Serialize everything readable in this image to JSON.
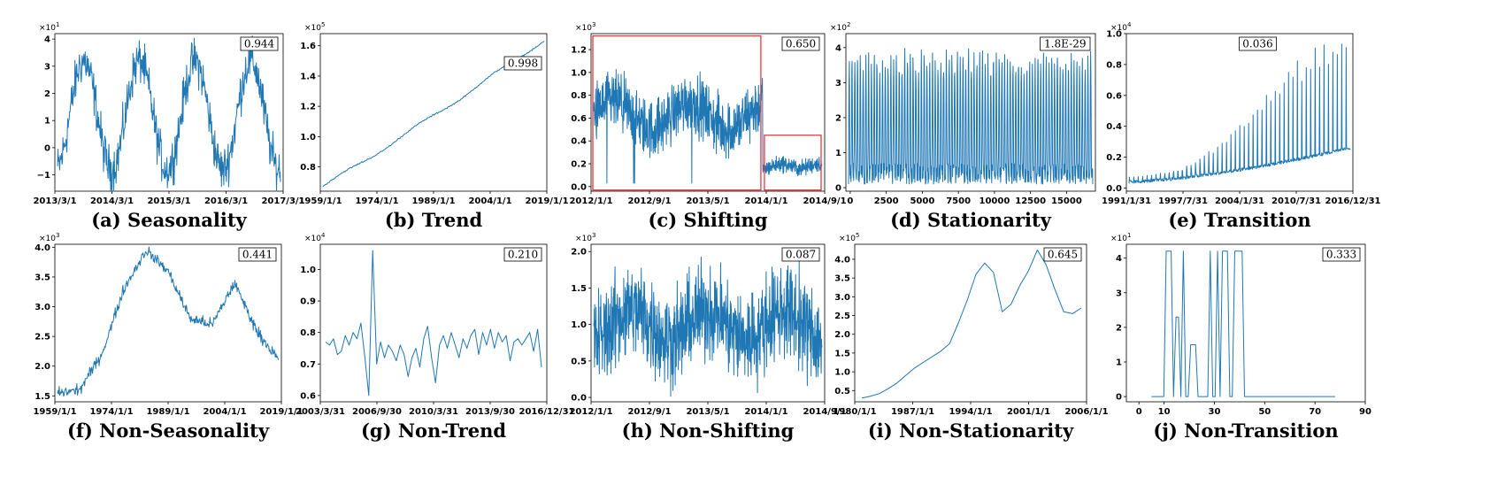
{
  "colors": {
    "series": "#1f77b4",
    "axis": "#000000",
    "highlight": "#e8383d"
  },
  "chart_data": [
    {
      "id": "a",
      "type": "line",
      "caption": "(a) Seasonality",
      "badge": "0.944",
      "exponent": "1",
      "xticks": [
        "2013/3/1",
        "2014/3/1",
        "2015/3/1",
        "2016/3/1",
        "2017/3/1"
      ],
      "yticks": [
        "−1",
        "0",
        "1",
        "2",
        "3",
        "4"
      ],
      "ylim": [
        -1.6,
        4.2
      ],
      "pattern": {
        "kind": "seasonal",
        "n": 500,
        "periods": 4,
        "base": 1.2,
        "amp": 2.0,
        "noise": 0.7,
        "phase": 0.2
      }
    },
    {
      "id": "b",
      "type": "line",
      "caption": "(b) Trend",
      "badge": "0.998",
      "exponent": "5",
      "xticks": [
        "1959/1/1",
        "1974/1/1",
        "1989/1/1",
        "2004/1/1",
        "2019/1/1"
      ],
      "yticks": [
        "0.8",
        "1.0",
        "1.2",
        "1.4",
        "1.6"
      ],
      "ylim": [
        0.64,
        1.68
      ],
      "pattern": {
        "kind": "trend",
        "n": 240,
        "start": 0.67,
        "end": 1.64,
        "noise": 0.004
      }
    },
    {
      "id": "c",
      "type": "line",
      "caption": "(c) Shifting",
      "badge": "0.650",
      "exponent": "3",
      "xticks": [
        "2012/1/1",
        "2012/9/1",
        "2013/5/1",
        "2014/1/1",
        "2014/9/1"
      ],
      "yticks": [
        "0.0",
        "0.2",
        "0.4",
        "0.6",
        "0.8",
        "1.0",
        "1.2"
      ],
      "ylim": [
        -0.04,
        1.34
      ],
      "pattern": {
        "kind": "shift",
        "n": 900,
        "split": 0.74,
        "hi": 0.62,
        "hiamp": 0.22,
        "lo": 0.18,
        "loamp": 0.06
      }
    },
    {
      "id": "d",
      "type": "line",
      "caption": "(d) Stationarity",
      "badge": "1.8E-29",
      "exponent": "2",
      "xticks": [
        "0",
        "2500",
        "5000",
        "7500",
        "10000",
        "12500",
        "15000"
      ],
      "yticks": [
        "0",
        "1",
        "2",
        "3",
        "4"
      ],
      "ylim": [
        -0.1,
        4.4
      ],
      "pattern": {
        "kind": "stationary",
        "n": 900,
        "cycles": 88,
        "lo": 0.1,
        "hi": 4.0
      }
    },
    {
      "id": "e",
      "type": "line",
      "caption": "(e) Transition",
      "badge": "0.036",
      "exponent": "4",
      "xticks": [
        "1991/1/31",
        "1997/7/31",
        "2004/1/31",
        "2010/7/31",
        "2016/12/31"
      ],
      "yticks": [
        "0.0",
        "0.2",
        "0.4",
        "0.6",
        "0.8",
        "1.0"
      ],
      "ylim": [
        -0.02,
        1.0
      ],
      "pattern": {
        "kind": "transition",
        "n": 600,
        "cycles": 50,
        "base": 0.03,
        "peakStart": 0.05,
        "peakEnd": 0.9
      }
    },
    {
      "id": "f",
      "type": "line",
      "caption": "(f) Non-Seasonality",
      "badge": "0.441",
      "exponent": "3",
      "xticks": [
        "1959/1/1",
        "1974/1/1",
        "1989/1/1",
        "2004/1/1",
        "2019/1/1"
      ],
      "yticks": [
        "1.5",
        "2.0",
        "2.5",
        "3.0",
        "3.5",
        "4.0"
      ],
      "ylim": [
        1.4,
        4.05
      ],
      "pattern": {
        "kind": "walk",
        "n": 400,
        "anchors": [
          1.55,
          1.6,
          2.2,
          3.3,
          3.95,
          3.6,
          2.8,
          2.7,
          3.4,
          2.6,
          2.1
        ],
        "noise": 0.08
      }
    },
    {
      "id": "g",
      "type": "line",
      "caption": "(g) Non-Trend",
      "badge": "0.210",
      "exponent": "4",
      "xticks": [
        "2003/3/31",
        "2006/9/30",
        "2010/3/31",
        "2013/9/30",
        "2016/12/31"
      ],
      "yticks": [
        "0.6",
        "0.7",
        "0.8",
        "0.9",
        "1.0"
      ],
      "ylim": [
        0.58,
        1.08
      ],
      "values": [
        0.77,
        0.76,
        0.78,
        0.73,
        0.74,
        0.79,
        0.76,
        0.8,
        0.78,
        0.83,
        0.72,
        0.6,
        1.06,
        0.7,
        0.77,
        0.72,
        0.76,
        0.74,
        0.71,
        0.76,
        0.73,
        0.66,
        0.72,
        0.75,
        0.69,
        0.78,
        0.82,
        0.72,
        0.64,
        0.76,
        0.79,
        0.75,
        0.8,
        0.76,
        0.72,
        0.78,
        0.75,
        0.79,
        0.81,
        0.73,
        0.8,
        0.76,
        0.81,
        0.75,
        0.8,
        0.77,
        0.79,
        0.71,
        0.77,
        0.78,
        0.76,
        0.78,
        0.8,
        0.74,
        0.81,
        0.69
      ]
    },
    {
      "id": "h",
      "type": "line",
      "caption": "(h) Non-Shifting",
      "badge": "0.087",
      "exponent": "3",
      "xticks": [
        "2012/1/1",
        "2012/9/1",
        "2013/5/1",
        "2014/1/1",
        "2014/9/1"
      ],
      "yticks": [
        "0.0",
        "0.5",
        "1.0",
        "1.5",
        "2.0"
      ],
      "ylim": [
        -0.06,
        2.1
      ],
      "pattern": {
        "kind": "seasonal",
        "n": 900,
        "periods": 3,
        "base": 1.0,
        "amp": 0.2,
        "noise": 0.55,
        "phase": 0.0
      }
    },
    {
      "id": "i",
      "type": "line",
      "caption": "(i) Non-Stationarity",
      "badge": "0.645",
      "exponent": "5",
      "xticks": [
        "1980/1/1",
        "1987/1/1",
        "1994/1/1",
        "2001/1/1",
        "2006/1/1"
      ],
      "yticks": [
        "0.5",
        "1.0",
        "1.5",
        "2.0",
        "2.5",
        "3.0",
        "3.5",
        "4.0"
      ],
      "ylim": [
        0.2,
        4.4
      ],
      "values": [
        0.3,
        0.35,
        0.42,
        0.55,
        0.7,
        0.9,
        1.1,
        1.25,
        1.4,
        1.55,
        1.75,
        2.3,
        2.9,
        3.6,
        3.9,
        3.65,
        2.6,
        2.8,
        3.3,
        3.7,
        4.25,
        3.85,
        3.2,
        2.6,
        2.55,
        2.7
      ]
    },
    {
      "id": "j",
      "type": "line",
      "caption": "(j) Non-Transition",
      "badge": "0.333",
      "exponent": "1",
      "xticks": [
        "0",
        "10",
        "30",
        "50",
        "70",
        "90"
      ],
      "yticks": [
        "0",
        "1",
        "2",
        "3",
        "4"
      ],
      "ylim": [
        -0.15,
        4.4
      ],
      "values": [
        0,
        0,
        0,
        0,
        0,
        0,
        4.2,
        4.2,
        4.2,
        0,
        2.3,
        2.3,
        0,
        4.2,
        0,
        0,
        1.5,
        1.5,
        1.5,
        0,
        0,
        0,
        0,
        0,
        4.2,
        0,
        0,
        4.2,
        0,
        4.2,
        4.2,
        4.2,
        0,
        0,
        4.2,
        4.2,
        4.2,
        4.2,
        0,
        0,
        0,
        0,
        0,
        0,
        0,
        0,
        0,
        0,
        0,
        0,
        0,
        0,
        0,
        0,
        0,
        0,
        0,
        0,
        0,
        0,
        0,
        0,
        0,
        0,
        0,
        0,
        0,
        0,
        0,
        0,
        0,
        0,
        0,
        0,
        0,
        0
      ]
    }
  ]
}
